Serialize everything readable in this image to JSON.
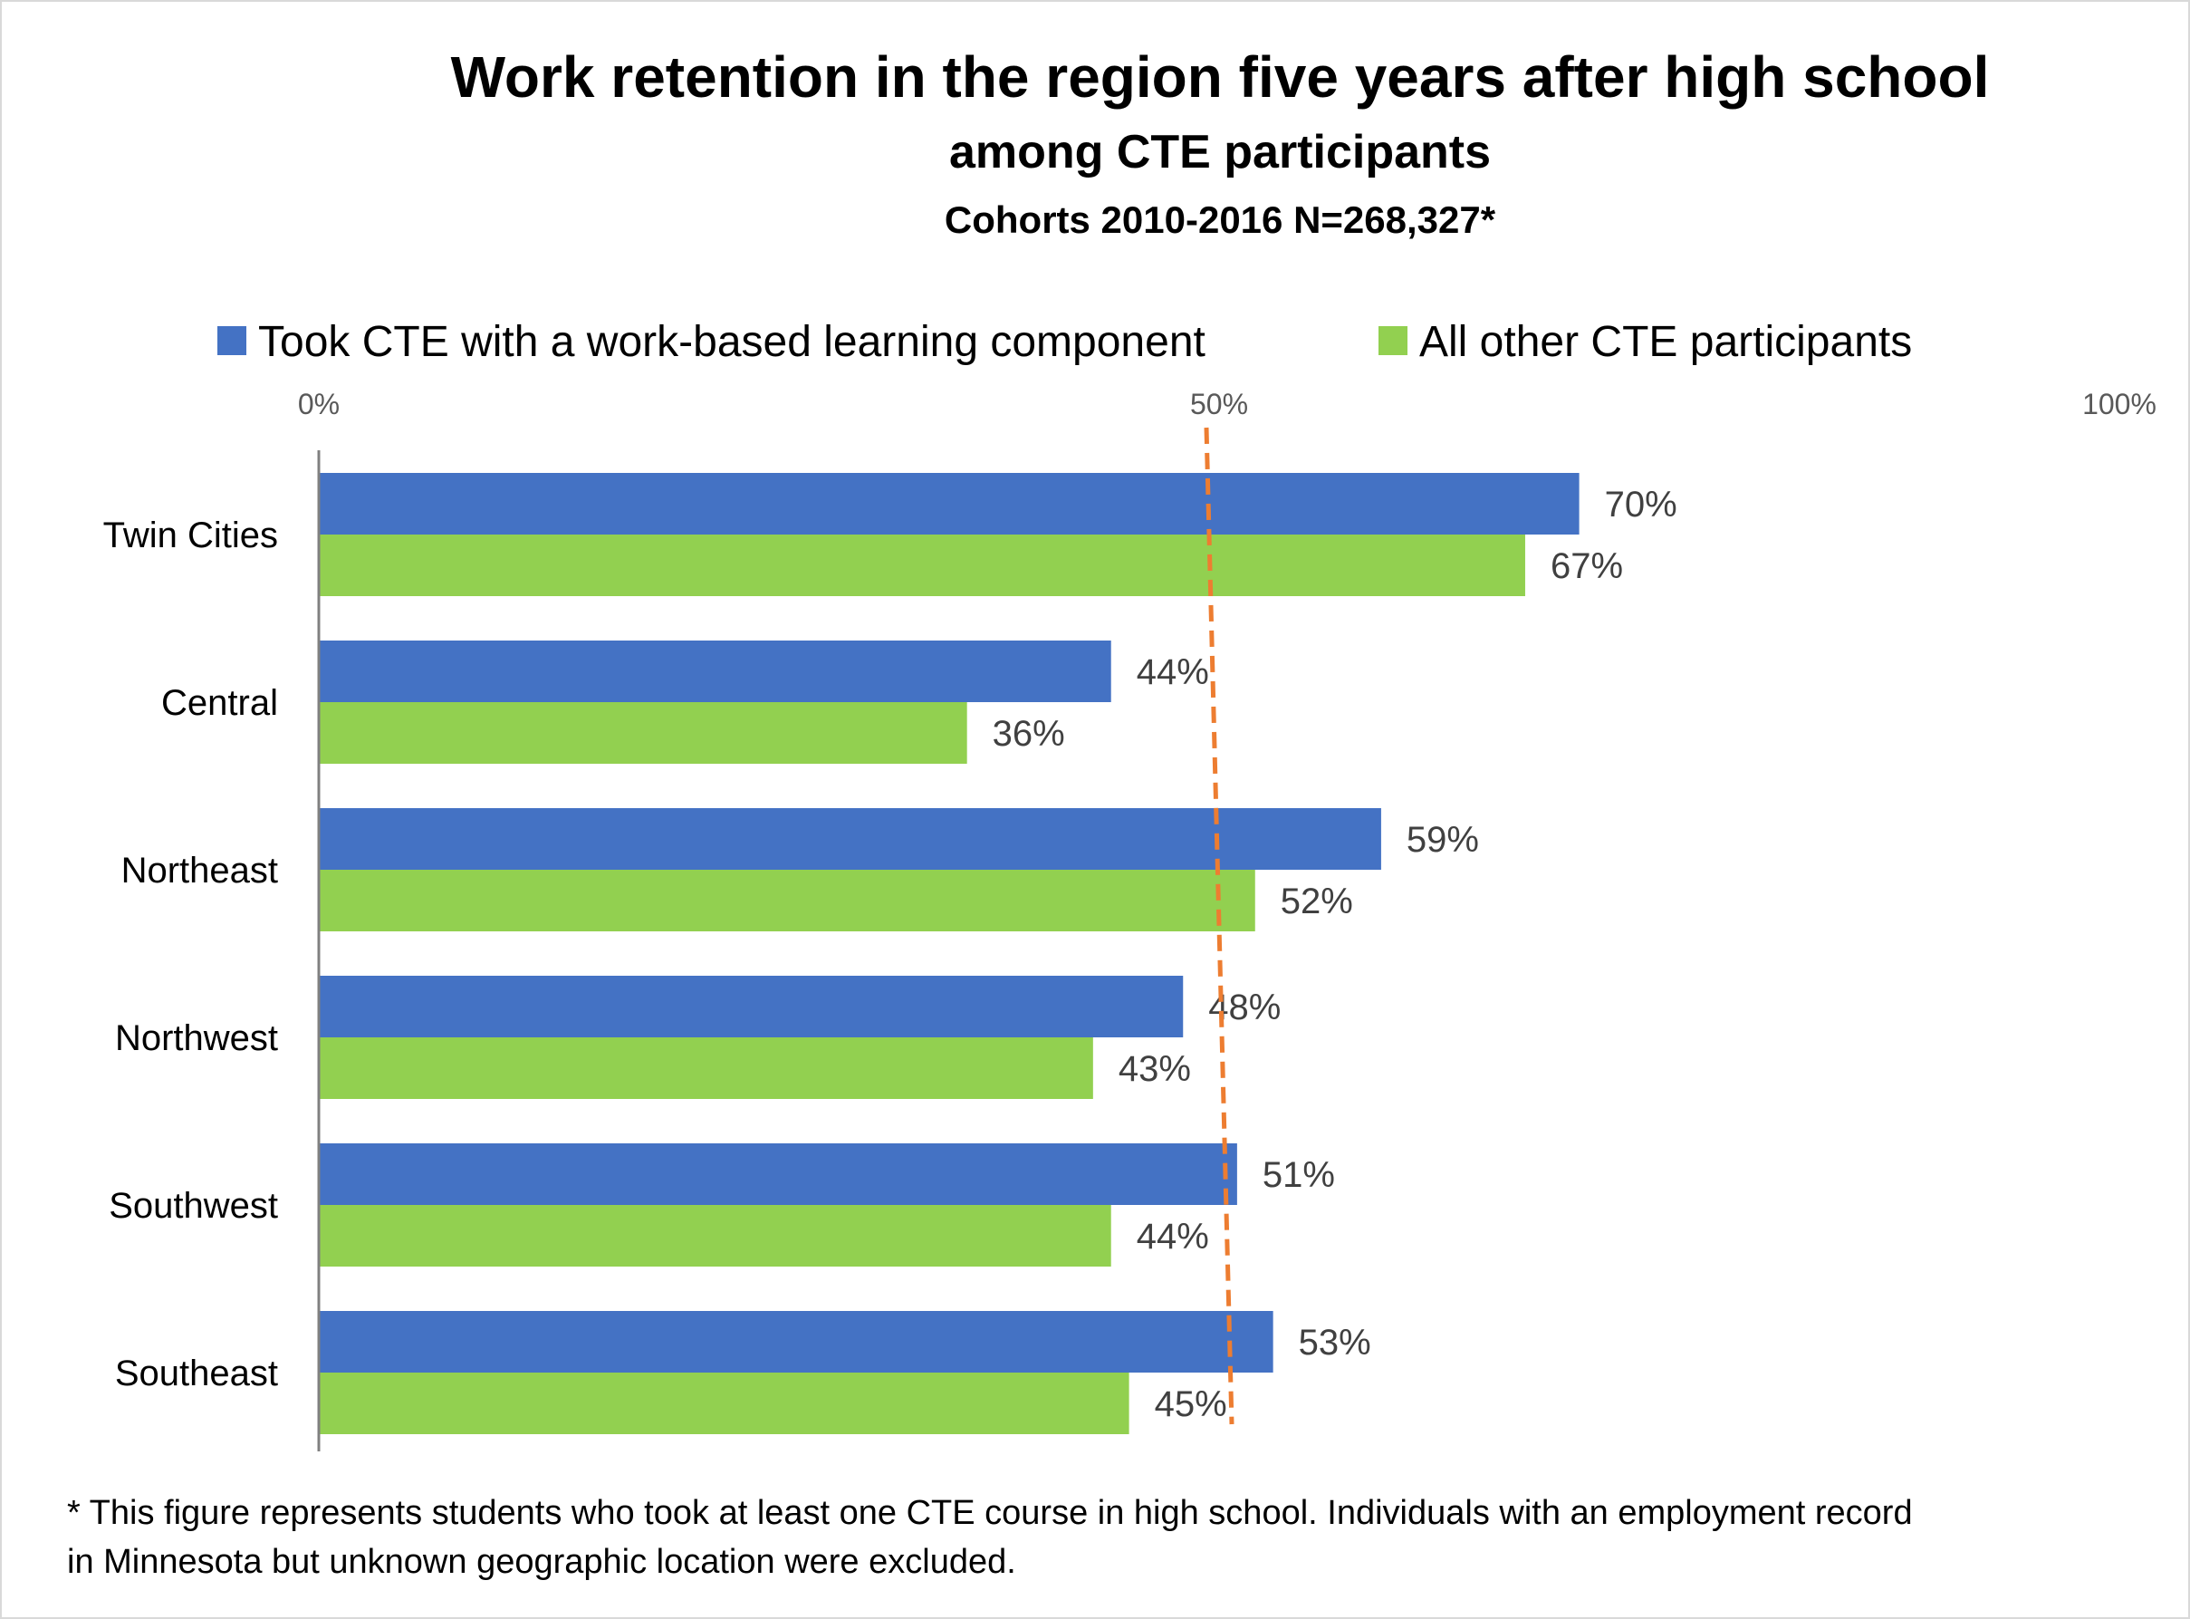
{
  "chart_data": {
    "type": "bar",
    "orientation": "horizontal",
    "title": "Work retention in the region five years after high school",
    "subtitle": "among CTE participants",
    "subtitle2": "Cohorts 2010-2016 N=268,327*",
    "categories": [
      "Twin Cities",
      "Central",
      "Northeast",
      "Northwest",
      "Southwest",
      "Southeast"
    ],
    "series": [
      {
        "name": "Took CTE with a work-based learning component",
        "color": "#4472C4",
        "values": [
          70,
          44,
          59,
          48,
          51,
          53
        ],
        "labels": [
          "70%",
          "44%",
          "59%",
          "48%",
          "51%",
          "53%"
        ]
      },
      {
        "name": "All other CTE participants",
        "color": "#92D050",
        "values": [
          67,
          36,
          52,
          43,
          44,
          45
        ],
        "labels": [
          "67%",
          "36%",
          "52%",
          "43%",
          "44%",
          "45%"
        ]
      }
    ],
    "xlim": [
      0,
      100
    ],
    "x_ticks": [
      0,
      50,
      100
    ],
    "x_tick_labels": [
      "0%",
      "50%",
      "100%"
    ],
    "x_axis_position": "top",
    "legend_position": "top",
    "grid": false,
    "reference_line": {
      "value": 50,
      "style": "dashed",
      "color": "#ED7D31"
    },
    "footnote": [
      "* This figure represents students who took at least one CTE course in high school. Individuals with an employment record",
      "in Minnesota but unknown geographic location were excluded."
    ]
  }
}
